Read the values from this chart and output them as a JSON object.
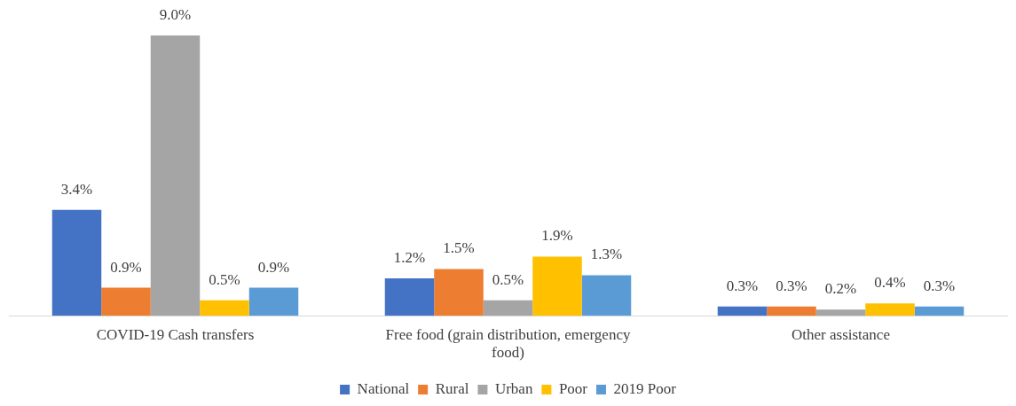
{
  "chart_data": {
    "type": "bar",
    "categories": [
      "COVID-19 Cash transfers",
      "Free food (grain distribution, emergency food)",
      "Other assistance"
    ],
    "series": [
      {
        "name": "National",
        "color": "#4472c4",
        "values": [
          3.4,
          1.2,
          0.3
        ],
        "value_labels": [
          "3.4%",
          "1.2%",
          "0.3%"
        ]
      },
      {
        "name": "Rural",
        "color": "#ed7d31",
        "values": [
          0.9,
          1.5,
          0.3
        ],
        "value_labels": [
          "0.9%",
          "1.5%",
          "0.3%"
        ]
      },
      {
        "name": "Urban",
        "color": "#a5a5a5",
        "values": [
          9.0,
          0.5,
          0.2
        ],
        "value_labels": [
          "9.0%",
          "0.5%",
          "0.2%"
        ]
      },
      {
        "name": "Poor",
        "color": "#ffc000",
        "values": [
          0.5,
          1.9,
          0.4
        ],
        "value_labels": [
          "0.5%",
          "1.9%",
          "0.4%"
        ]
      },
      {
        "name": "2019 Poor",
        "color": "#5b9bd5",
        "values": [
          0.9,
          1.3,
          0.3
        ],
        "value_labels": [
          "0.9%",
          "1.3%",
          "0.3%"
        ]
      }
    ],
    "grid": false,
    "legend": "bottom"
  }
}
